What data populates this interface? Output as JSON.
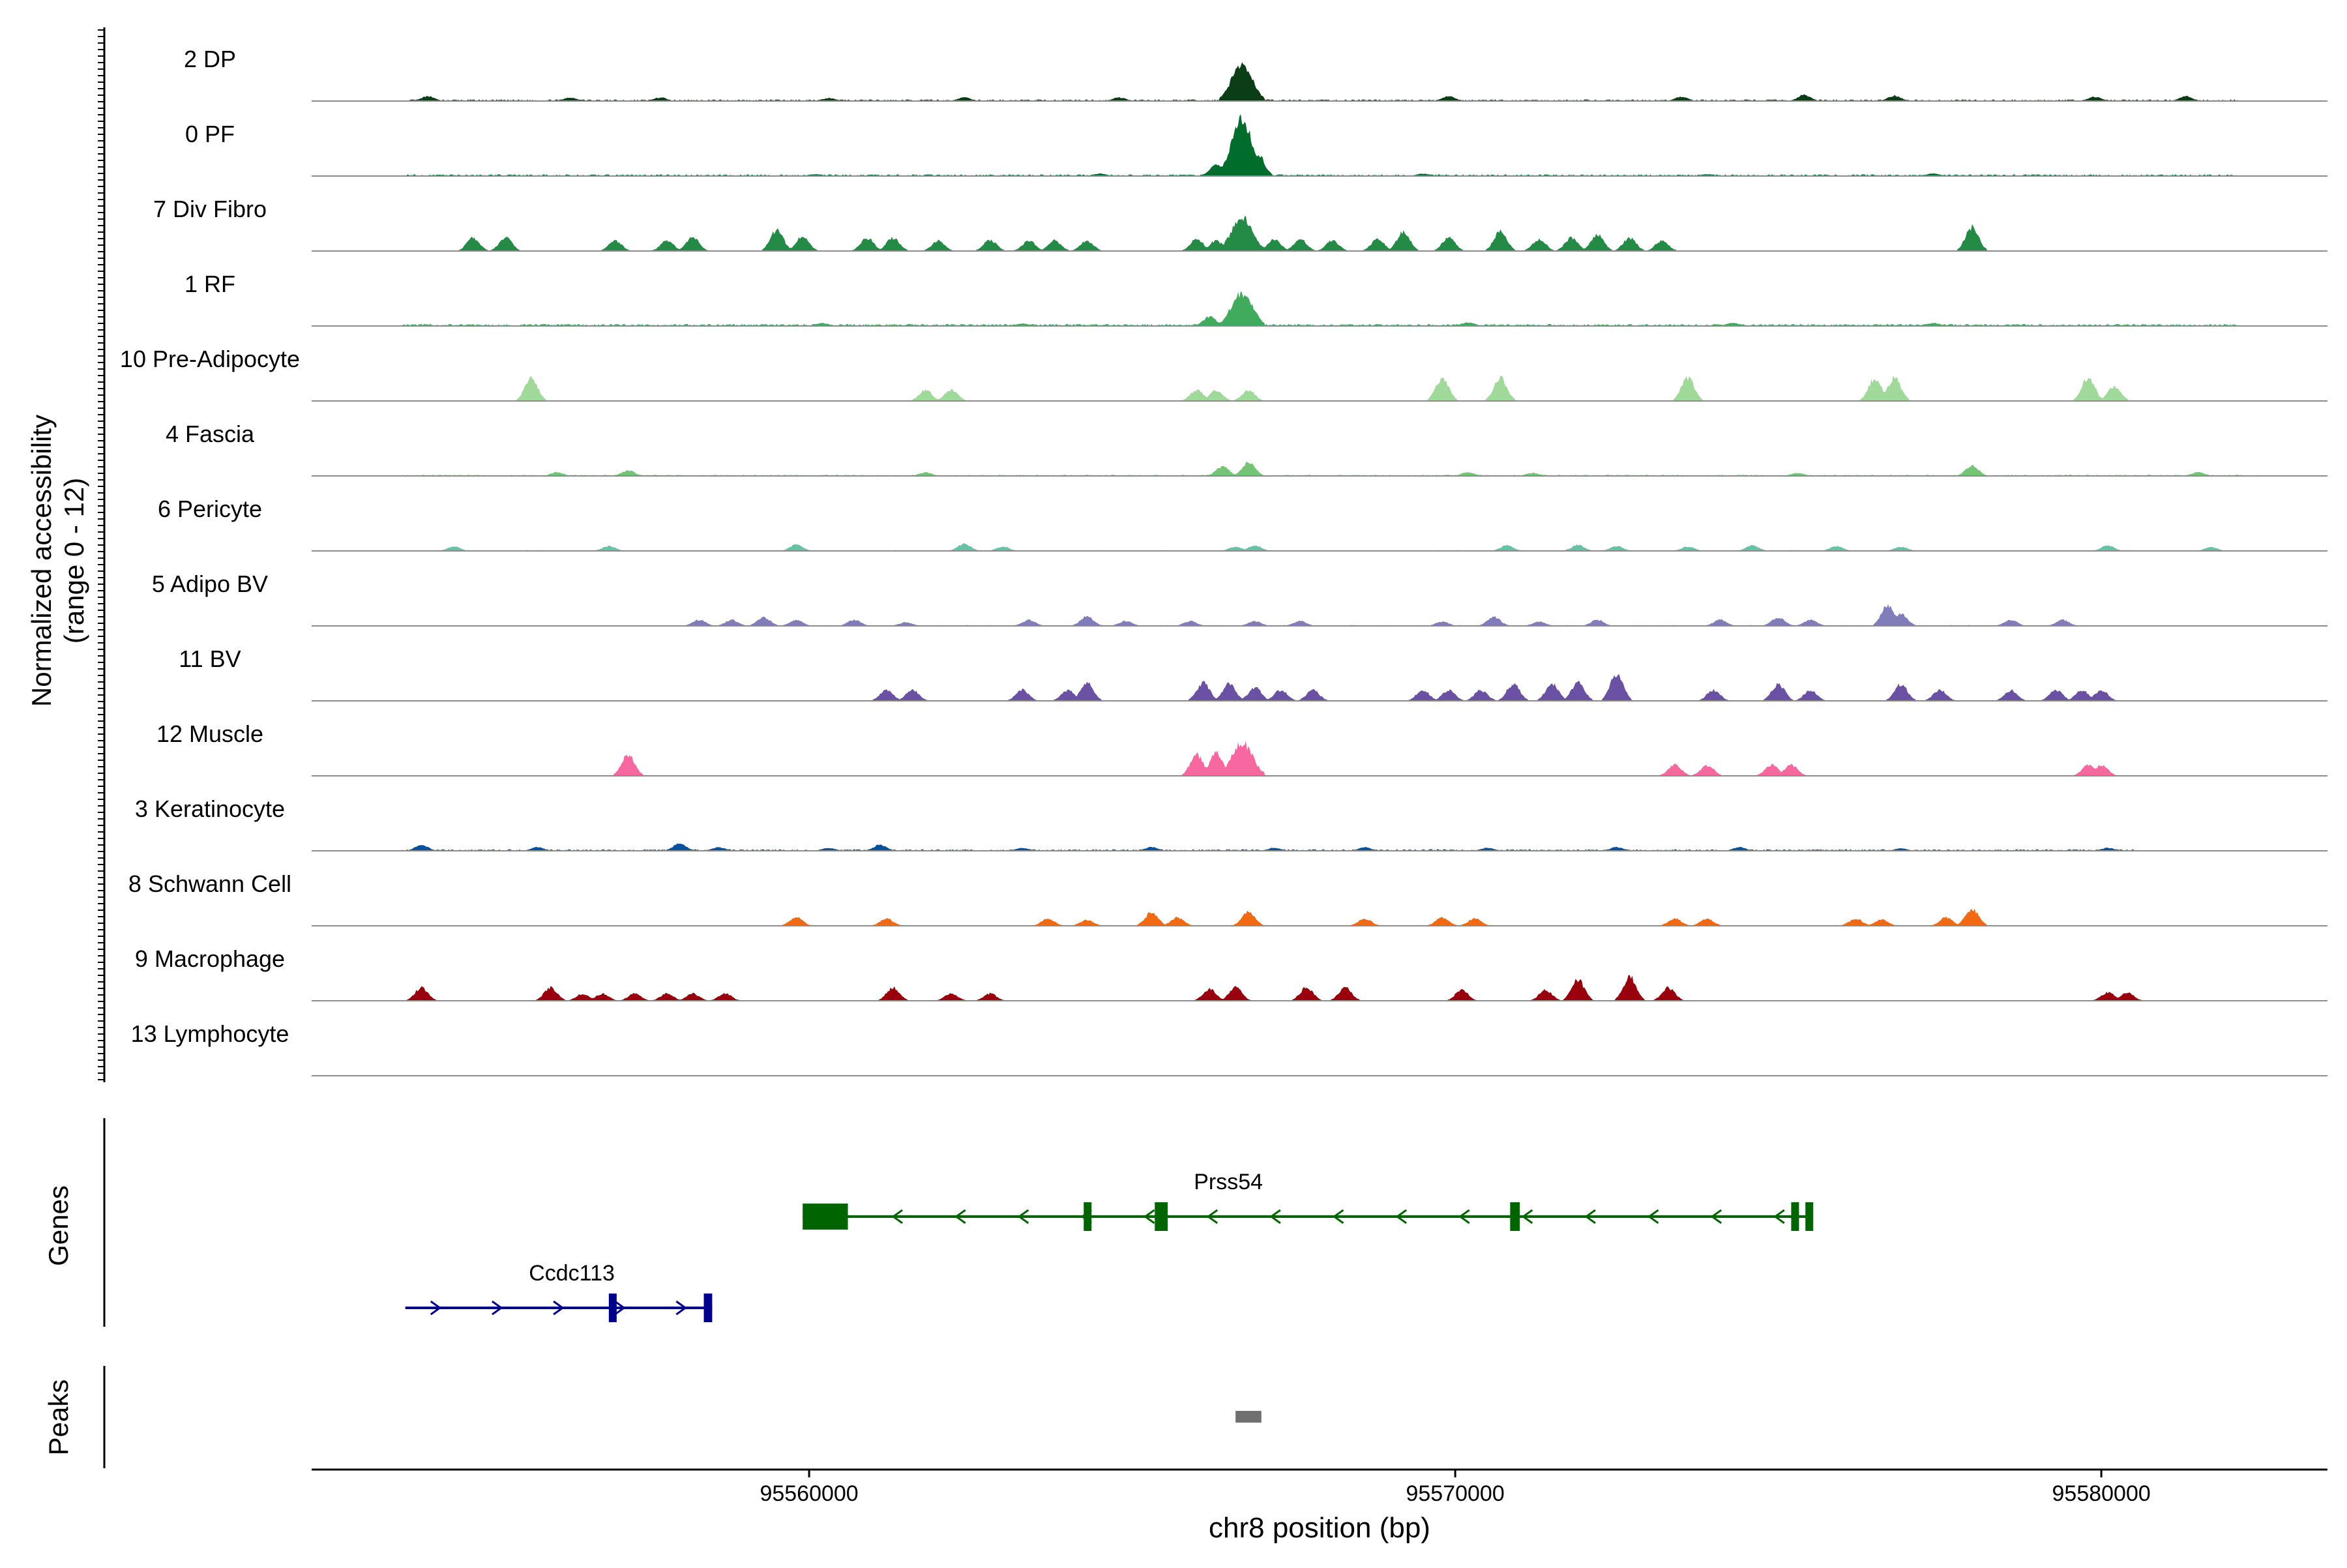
{
  "chart_data": {
    "type": "area",
    "title": "",
    "ylabel_line1": "Normalized accessibility",
    "ylabel_line2": "(range 0 - 12)",
    "ylim": [
      0,
      12
    ],
    "xlabel": "chr8 position (bp)",
    "xlim": [
      95552300,
      95583500
    ],
    "xticks": [
      95560000,
      95570000,
      95580000
    ],
    "xtick_labels": [
      "95560000",
      "95570000",
      "95580000"
    ],
    "genes_label": "Genes",
    "peaks_label": "Peaks",
    "tracks": [
      {
        "name": "2 DP",
        "color": "#0b3d17",
        "peaks": [
          [
            95554100,
            0.08
          ],
          [
            95556300,
            0.06
          ],
          [
            95557700,
            0.06
          ],
          [
            95560300,
            0.05
          ],
          [
            95562400,
            0.06
          ],
          [
            95564800,
            0.06
          ],
          [
            95566700,
            0.6
          ],
          [
            95569900,
            0.08
          ],
          [
            95573500,
            0.07
          ],
          [
            95575400,
            0.1
          ],
          [
            95576800,
            0.09
          ],
          [
            95579900,
            0.07
          ],
          [
            95581300,
            0.08
          ]
        ],
        "noise": [
          95553800,
          95582100
        ],
        "noise_level": 0.04
      },
      {
        "name": "0 PF",
        "color": "#006d2c",
        "peaks": [
          [
            95566700,
            0.95
          ],
          [
            95566300,
            0.2
          ],
          [
            95566950,
            0.35
          ],
          [
            95560100,
            0.03
          ],
          [
            95564500,
            0.04
          ],
          [
            95569500,
            0.04
          ],
          [
            95573900,
            0.03
          ],
          [
            95577400,
            0.04
          ]
        ],
        "noise": [
          95553700,
          95582100
        ],
        "noise_level": 0.04
      },
      {
        "name": "7 Div Fibro",
        "color": "#238b45",
        "peaks": [
          [
            95554800,
            0.22
          ],
          [
            95555300,
            0.22
          ],
          [
            95557000,
            0.17
          ],
          [
            95557800,
            0.17
          ],
          [
            95558200,
            0.22
          ],
          [
            95559500,
            0.35
          ],
          [
            95559900,
            0.24
          ],
          [
            95560900,
            0.22
          ],
          [
            95561300,
            0.22
          ],
          [
            95562000,
            0.17
          ],
          [
            95562800,
            0.18
          ],
          [
            95563400,
            0.17
          ],
          [
            95563800,
            0.17
          ],
          [
            95564300,
            0.17
          ],
          [
            95566000,
            0.2
          ],
          [
            95566300,
            0.17
          ],
          [
            95566700,
            0.55
          ],
          [
            95567200,
            0.2
          ],
          [
            95567600,
            0.2
          ],
          [
            95568100,
            0.17
          ],
          [
            95568800,
            0.2
          ],
          [
            95569200,
            0.32
          ],
          [
            95569900,
            0.22
          ],
          [
            95570700,
            0.32
          ],
          [
            95571300,
            0.2
          ],
          [
            95571800,
            0.22
          ],
          [
            95572200,
            0.28
          ],
          [
            95572700,
            0.22
          ],
          [
            95573200,
            0.17
          ],
          [
            95578000,
            0.4
          ]
        ],
        "noise": [
          95554600,
          95578500
        ],
        "noise_level": 0.0
      },
      {
        "name": "1 RF",
        "color": "#41ab5d",
        "peaks": [
          [
            95566700,
            0.55
          ],
          [
            95566200,
            0.15
          ],
          [
            95560200,
            0.05
          ],
          [
            95563300,
            0.04
          ],
          [
            95570200,
            0.06
          ],
          [
            95574300,
            0.05
          ],
          [
            95577400,
            0.05
          ]
        ],
        "noise": [
          95553700,
          95582100
        ],
        "noise_level": 0.05
      },
      {
        "name": "10 Pre-Adipocyte",
        "color": "#a1d99b",
        "peaks": [
          [
            95555700,
            0.38
          ],
          [
            95561800,
            0.18
          ],
          [
            95562200,
            0.18
          ],
          [
            95566000,
            0.18
          ],
          [
            95566300,
            0.18
          ],
          [
            95566800,
            0.18
          ],
          [
            95569800,
            0.38
          ],
          [
            95570700,
            0.38
          ],
          [
            95573600,
            0.38
          ],
          [
            95576500,
            0.38
          ],
          [
            95576800,
            0.38
          ],
          [
            95579800,
            0.38
          ],
          [
            95580200,
            0.24
          ]
        ],
        "noise": [
          95555600,
          95580400
        ],
        "noise_level": 0.0
      },
      {
        "name": "4 Fascia",
        "color": "#74c476",
        "peaks": [
          [
            95556100,
            0.06
          ],
          [
            95557200,
            0.09
          ],
          [
            95561800,
            0.06
          ],
          [
            95566400,
            0.16
          ],
          [
            95566800,
            0.22
          ],
          [
            95570200,
            0.06
          ],
          [
            95571200,
            0.05
          ],
          [
            95575300,
            0.05
          ],
          [
            95578000,
            0.17
          ],
          [
            95581500,
            0.06
          ]
        ],
        "noise": [
          95553700,
          95582400
        ],
        "noise_level": 0.03
      },
      {
        "name": "6 Pericyte",
        "color": "#66c2a4",
        "peaks": [
          [
            95554500,
            0.07
          ],
          [
            95556900,
            0.08
          ],
          [
            95559800,
            0.1
          ],
          [
            95562400,
            0.12
          ],
          [
            95563000,
            0.07
          ],
          [
            95566600,
            0.07
          ],
          [
            95566900,
            0.09
          ],
          [
            95570800,
            0.09
          ],
          [
            95571900,
            0.1
          ],
          [
            95572500,
            0.08
          ],
          [
            95573600,
            0.07
          ],
          [
            95574600,
            0.09
          ],
          [
            95575900,
            0.08
          ],
          [
            95576900,
            0.07
          ],
          [
            95580100,
            0.09
          ],
          [
            95581700,
            0.06
          ]
        ],
        "noise": [
          95554200,
          95582100
        ],
        "noise_level": 0.02
      },
      {
        "name": "5 Adipo BV",
        "color": "#807dba",
        "peaks": [
          [
            95558300,
            0.1
          ],
          [
            95558800,
            0.1
          ],
          [
            95559300,
            0.14
          ],
          [
            95559800,
            0.1
          ],
          [
            95560700,
            0.1
          ],
          [
            95561500,
            0.06
          ],
          [
            95563400,
            0.1
          ],
          [
            95564300,
            0.16
          ],
          [
            95564900,
            0.08
          ],
          [
            95565900,
            0.08
          ],
          [
            95566900,
            0.08
          ],
          [
            95567600,
            0.08
          ],
          [
            95569800,
            0.07
          ],
          [
            95570600,
            0.15
          ],
          [
            95571300,
            0.07
          ],
          [
            95572200,
            0.1
          ],
          [
            95574100,
            0.1
          ],
          [
            95575000,
            0.14
          ],
          [
            95575500,
            0.1
          ],
          [
            95576700,
            0.35
          ],
          [
            95576900,
            0.2
          ],
          [
            95578600,
            0.1
          ],
          [
            95579400,
            0.1
          ]
        ],
        "noise": [
          95558000,
          95580000
        ],
        "noise_level": 0.02
      },
      {
        "name": "11 BV",
        "color": "#6a51a3",
        "peaks": [
          [
            95561200,
            0.18
          ],
          [
            95561600,
            0.18
          ],
          [
            95563300,
            0.18
          ],
          [
            95564000,
            0.18
          ],
          [
            95564300,
            0.3
          ],
          [
            95566100,
            0.3
          ],
          [
            95566500,
            0.28
          ],
          [
            95566900,
            0.22
          ],
          [
            95567300,
            0.18
          ],
          [
            95567800,
            0.18
          ],
          [
            95569500,
            0.18
          ],
          [
            95569900,
            0.18
          ],
          [
            95570400,
            0.18
          ],
          [
            95570900,
            0.28
          ],
          [
            95571500,
            0.28
          ],
          [
            95571900,
            0.3
          ],
          [
            95572500,
            0.45
          ],
          [
            95574000,
            0.18
          ],
          [
            95575000,
            0.28
          ],
          [
            95575500,
            0.18
          ],
          [
            95576900,
            0.28
          ],
          [
            95577500,
            0.18
          ],
          [
            95578600,
            0.18
          ],
          [
            95579300,
            0.18
          ],
          [
            95579700,
            0.18
          ],
          [
            95580000,
            0.18
          ]
        ],
        "noise": [
          95561000,
          95580200
        ],
        "noise_level": 0.0
      },
      {
        "name": "12 Muscle",
        "color": "#f768a1",
        "peaks": [
          [
            95557200,
            0.35
          ],
          [
            95566000,
            0.35
          ],
          [
            95566300,
            0.38
          ],
          [
            95566700,
            0.55
          ],
          [
            95573400,
            0.18
          ],
          [
            95573900,
            0.18
          ],
          [
            95574900,
            0.18
          ],
          [
            95575200,
            0.18
          ],
          [
            95579800,
            0.18
          ],
          [
            95580000,
            0.18
          ]
        ],
        "noise": [
          95557000,
          95580100
        ],
        "noise_level": 0.0
      },
      {
        "name": "3 Keratinocyte",
        "color": "#08519c",
        "peaks": [
          [
            95554000,
            0.1
          ],
          [
            95555800,
            0.06
          ],
          [
            95558000,
            0.12
          ],
          [
            95558600,
            0.06
          ],
          [
            95560300,
            0.05
          ],
          [
            95561100,
            0.1
          ],
          [
            95563300,
            0.05
          ],
          [
            95565300,
            0.06
          ],
          [
            95567200,
            0.05
          ],
          [
            95568600,
            0.06
          ],
          [
            95570500,
            0.05
          ],
          [
            95572500,
            0.06
          ],
          [
            95574400,
            0.06
          ],
          [
            95576900,
            0.04
          ],
          [
            95580100,
            0.05
          ]
        ],
        "noise": [
          95553700,
          95580500
        ],
        "noise_level": 0.04
      },
      {
        "name": "8 Schwann Cell",
        "color": "#f16913",
        "peaks": [
          [
            95559800,
            0.14
          ],
          [
            95561200,
            0.12
          ],
          [
            95563700,
            0.12
          ],
          [
            95564300,
            0.1
          ],
          [
            95565300,
            0.22
          ],
          [
            95565700,
            0.14
          ],
          [
            95566800,
            0.24
          ],
          [
            95568600,
            0.12
          ],
          [
            95569800,
            0.14
          ],
          [
            95570300,
            0.12
          ],
          [
            95573400,
            0.12
          ],
          [
            95573900,
            0.12
          ],
          [
            95576200,
            0.12
          ],
          [
            95576600,
            0.1
          ],
          [
            95577600,
            0.14
          ],
          [
            95578000,
            0.28
          ]
        ],
        "noise": [
          95559600,
          95578300
        ],
        "noise_level": 0.0
      },
      {
        "name": "9 Macrophage",
        "color": "#99000d",
        "peaks": [
          [
            95554000,
            0.22
          ],
          [
            95556000,
            0.22
          ],
          [
            95556500,
            0.12
          ],
          [
            95556800,
            0.12
          ],
          [
            95557300,
            0.12
          ],
          [
            95557800,
            0.12
          ],
          [
            95558200,
            0.12
          ],
          [
            95558700,
            0.12
          ],
          [
            95561300,
            0.22
          ],
          [
            95562200,
            0.12
          ],
          [
            95562800,
            0.12
          ],
          [
            95566200,
            0.2
          ],
          [
            95566600,
            0.22
          ],
          [
            95567700,
            0.22
          ],
          [
            95568300,
            0.22
          ],
          [
            95570100,
            0.18
          ],
          [
            95571400,
            0.18
          ],
          [
            95571900,
            0.35
          ],
          [
            95572700,
            0.4
          ],
          [
            95573300,
            0.22
          ],
          [
            95580100,
            0.14
          ],
          [
            95580400,
            0.14
          ]
        ],
        "noise": [
          95553800,
          95580500
        ],
        "noise_level": 0.0
      },
      {
        "name": "13 Lymphocyte",
        "color": "#000000",
        "peaks": [],
        "noise": [
          0,
          0
        ],
        "noise_level": 0.0
      }
    ],
    "genes": [
      {
        "name": "Prss54",
        "strand": "-",
        "color": "#006400",
        "start": 95559900,
        "end": 95575500,
        "exons": [
          [
            95559900,
            95560600
          ],
          [
            95564250,
            95564350
          ],
          [
            95565350,
            95565550
          ],
          [
            95570850,
            95571000
          ],
          [
            95575200,
            95575280
          ],
          [
            95575420,
            95575500
          ]
        ]
      },
      {
        "name": "Ccdc113",
        "strand": "+",
        "color": "#00008b",
        "start": 95553750,
        "end": 95558500,
        "exons": [
          [
            95556900,
            95557000
          ],
          [
            95558370,
            95558500
          ]
        ]
      }
    ],
    "peak_regions": [
      [
        95566600,
        95567000
      ]
    ]
  }
}
